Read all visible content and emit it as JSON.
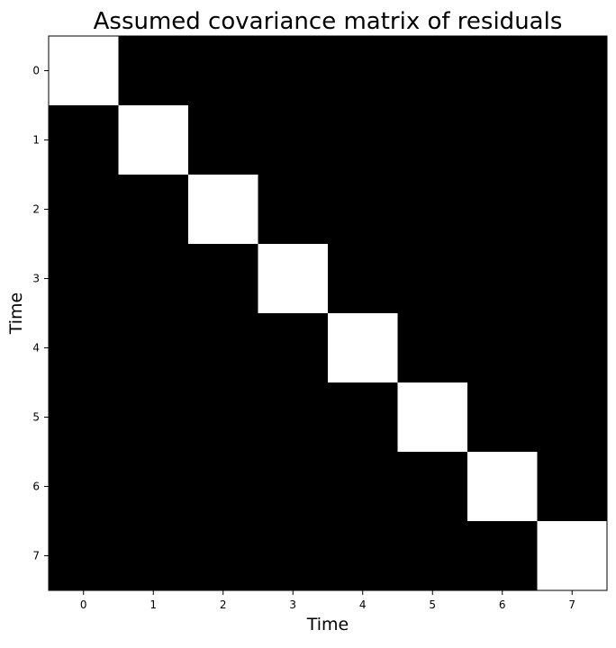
{
  "chart_data": {
    "type": "heatmap",
    "title": "Assumed covariance matrix of residuals",
    "xlabel": "Time",
    "ylabel": "Time",
    "x_ticks": [
      "0",
      "1",
      "2",
      "3",
      "4",
      "5",
      "6",
      "7"
    ],
    "y_ticks": [
      "0",
      "1",
      "2",
      "3",
      "4",
      "5",
      "6",
      "7"
    ],
    "values": [
      [
        1,
        0,
        0,
        0,
        0,
        0,
        0,
        0
      ],
      [
        0,
        1,
        0,
        0,
        0,
        0,
        0,
        0
      ],
      [
        0,
        0,
        1,
        0,
        0,
        0,
        0,
        0
      ],
      [
        0,
        0,
        0,
        1,
        0,
        0,
        0,
        0
      ],
      [
        0,
        0,
        0,
        0,
        1,
        0,
        0,
        0
      ],
      [
        0,
        0,
        0,
        0,
        0,
        1,
        0,
        0
      ],
      [
        0,
        0,
        0,
        0,
        0,
        0,
        1,
        0
      ],
      [
        0,
        0,
        0,
        0,
        0,
        0,
        0,
        1
      ]
    ],
    "colormap": "gray",
    "color_low": "#000000",
    "color_high": "#ffffff",
    "grid": false,
    "legend": "none"
  }
}
